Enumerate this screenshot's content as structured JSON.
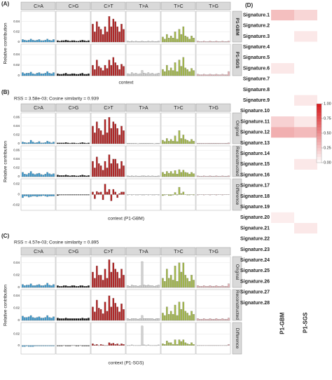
{
  "panel_a": {
    "label": "(A)",
    "ylabel": "Relative contribution",
    "xlabel": "context",
    "substitutions": [
      "C>A",
      "C>G",
      "C>T",
      "T>A",
      "T>C",
      "T>G"
    ],
    "colors": [
      "#3a9ad0",
      "#111111",
      "#b22222",
      "#d0d0d0",
      "#a3b84a",
      "#e8b4b8"
    ],
    "rows": [
      {
        "name": "P1-GBM",
        "ylim": [
          0,
          0.06
        ],
        "yticks": [
          0,
          0.02,
          0.04
        ],
        "values": [
          0.005,
          0.004,
          0.003,
          0.004,
          0.006,
          0.004,
          0.003,
          0.004,
          0.005,
          0.003,
          0.003,
          0.004,
          0.006,
          0.004,
          0.003,
          0.005,
          0.003,
          0.002,
          0.003,
          0.003,
          0.004,
          0.003,
          0.002,
          0.003,
          0.003,
          0.002,
          0.002,
          0.003,
          0.004,
          0.003,
          0.002,
          0.003,
          0.035,
          0.02,
          0.04,
          0.03,
          0.025,
          0.015,
          0.03,
          0.02,
          0.05,
          0.03,
          0.045,
          0.04,
          0.03,
          0.02,
          0.035,
          0.025,
          0.002,
          0.001,
          0.002,
          0.001,
          0.002,
          0.001,
          0.001,
          0.002,
          0.001,
          0.001,
          0.002,
          0.001,
          0.002,
          0.001,
          0.001,
          0.002,
          0.01,
          0.006,
          0.015,
          0.008,
          0.012,
          0.008,
          0.02,
          0.006,
          0.025,
          0.015,
          0.03,
          0.012,
          0.01,
          0.006,
          0.012,
          0.008,
          0.002,
          0.001,
          0.001,
          0.002,
          0.001,
          0.001,
          0.002,
          0.001,
          0.001,
          0.002,
          0.001,
          0.001,
          0.002,
          0.001,
          0.001,
          0.002
        ]
      },
      {
        "name": "P1-SGS",
        "ylim": [
          0,
          0.06
        ],
        "yticks": [
          0,
          0.02,
          0.04
        ],
        "values": [
          0.006,
          0.004,
          0.005,
          0.005,
          0.007,
          0.004,
          0.003,
          0.005,
          0.006,
          0.004,
          0.004,
          0.005,
          0.008,
          0.005,
          0.004,
          0.006,
          0.004,
          0.003,
          0.003,
          0.004,
          0.005,
          0.003,
          0.003,
          0.004,
          0.004,
          0.003,
          0.003,
          0.004,
          0.005,
          0.003,
          0.003,
          0.004,
          0.02,
          0.012,
          0.03,
          0.018,
          0.015,
          0.01,
          0.02,
          0.014,
          0.03,
          0.02,
          0.035,
          0.025,
          0.02,
          0.012,
          0.022,
          0.018,
          0.004,
          0.003,
          0.006,
          0.004,
          0.005,
          0.003,
          0.004,
          0.01,
          0.005,
          0.004,
          0.006,
          0.004,
          0.005,
          0.003,
          0.004,
          0.005,
          0.012,
          0.008,
          0.02,
          0.01,
          0.015,
          0.01,
          0.025,
          0.008,
          0.03,
          0.018,
          0.035,
          0.015,
          0.012,
          0.008,
          0.014,
          0.01,
          0.003,
          0.002,
          0.002,
          0.003,
          0.002,
          0.002,
          0.003,
          0.002,
          0.002,
          0.003,
          0.002,
          0.002,
          0.003,
          0.002,
          0.002,
          0.008
        ]
      }
    ]
  },
  "panel_b": {
    "label": "(B)",
    "note": "RSS = 3.58e-03; Cosine similarity = 0.939",
    "ylabel": "Relative contribution",
    "xlabel": "context (P1-GBM)",
    "substitutions": [
      "C>A",
      "C>G",
      "C>T",
      "T>A",
      "T>C",
      "T>G"
    ],
    "colors": [
      "#3a9ad0",
      "#111111",
      "#b22222",
      "#d0d0d0",
      "#a3b84a",
      "#e8b4b8"
    ],
    "rows": [
      {
        "name": "Original",
        "ylim": [
          0,
          0.07
        ],
        "yticks": [
          0,
          0.02,
          0.04,
          0.06
        ],
        "values": [
          0.004,
          0.003,
          0.002,
          0.003,
          0.008,
          0.004,
          0.002,
          0.003,
          0.005,
          0.002,
          0.002,
          0.003,
          0.006,
          0.004,
          0.002,
          0.004,
          0.002,
          0.002,
          0.002,
          0.002,
          0.003,
          0.002,
          0.001,
          0.002,
          0.002,
          0.001,
          0.001,
          0.002,
          0.003,
          0.002,
          0.001,
          0.002,
          0.04,
          0.025,
          0.05,
          0.035,
          0.03,
          0.02,
          0.055,
          0.025,
          0.06,
          0.035,
          0.05,
          0.045,
          0.035,
          0.02,
          0.04,
          0.03,
          0.001,
          0.001,
          0.001,
          0.001,
          0.001,
          0,
          0.001,
          0.001,
          0.001,
          0.001,
          0.001,
          0.001,
          0.001,
          0,
          0.001,
          0.001,
          0.008,
          0.005,
          0.012,
          0.006,
          0.01,
          0.006,
          0.018,
          0.005,
          0.03,
          0.012,
          0.02,
          0.01,
          0.008,
          0.005,
          0.01,
          0.006,
          0.001,
          0.001,
          0.001,
          0.001,
          0.001,
          0.001,
          0.001,
          0.001,
          0.001,
          0.001,
          0.001,
          0.001,
          0.001,
          0.001,
          0.001,
          0.002
        ]
      },
      {
        "name": "Reconstructed",
        "ylim": [
          0,
          0.07
        ],
        "yticks": [
          0,
          0.02,
          0.04,
          0.06
        ],
        "values": [
          0.01,
          0.006,
          0.005,
          0.008,
          0.012,
          0.007,
          0.005,
          0.007,
          0.008,
          0.005,
          0.004,
          0.006,
          0.01,
          0.007,
          0.005,
          0.007,
          0.004,
          0.003,
          0.003,
          0.003,
          0.004,
          0.003,
          0.002,
          0.003,
          0.003,
          0.002,
          0.002,
          0.003,
          0.004,
          0.003,
          0.002,
          0.003,
          0.035,
          0.02,
          0.045,
          0.03,
          0.025,
          0.015,
          0.035,
          0.02,
          0.05,
          0.03,
          0.04,
          0.04,
          0.03,
          0.018,
          0.035,
          0.025,
          0.002,
          0.001,
          0.002,
          0.001,
          0.002,
          0.001,
          0.001,
          0.002,
          0.002,
          0.001,
          0.002,
          0.001,
          0.002,
          0.001,
          0.001,
          0.002,
          0.01,
          0.006,
          0.012,
          0.008,
          0.012,
          0.007,
          0.014,
          0.006,
          0.016,
          0.01,
          0.015,
          0.01,
          0.009,
          0.006,
          0.01,
          0.007,
          0.002,
          0.001,
          0.001,
          0.002,
          0.001,
          0.001,
          0.002,
          0.001,
          0.001,
          0.002,
          0.001,
          0.001,
          0.002,
          0.001,
          0.001,
          0.002
        ]
      },
      {
        "name": "Difference",
        "ylim": [
          -0.03,
          0.03
        ],
        "yticks": [
          -0.02,
          0,
          0.02
        ],
        "values": [
          -0.006,
          -0.003,
          -0.003,
          -0.005,
          -0.004,
          -0.003,
          -0.003,
          -0.004,
          -0.003,
          -0.003,
          -0.002,
          -0.003,
          -0.004,
          -0.003,
          -0.003,
          -0.003,
          -0.002,
          -0.001,
          -0.001,
          -0.001,
          -0.001,
          -0.001,
          -0.001,
          -0.001,
          -0.001,
          -0.001,
          -0.001,
          -0.001,
          -0.001,
          -0.001,
          -0.001,
          -0.001,
          0.005,
          -0.008,
          0.006,
          0.004,
          0.005,
          -0.01,
          0.02,
          0.005,
          0.01,
          -0.012,
          0.01,
          0.005,
          -0.006,
          0.002,
          0.005,
          0.005,
          -0.001,
          0,
          -0.001,
          0,
          -0.001,
          -0.001,
          0,
          -0.001,
          -0.001,
          0,
          -0.001,
          0,
          -0.001,
          -0.001,
          0,
          -0.001,
          -0.002,
          -0.001,
          0,
          -0.002,
          -0.002,
          -0.001,
          0.004,
          -0.001,
          0.014,
          0.002,
          0.005,
          0,
          -0.001,
          -0.001,
          0,
          -0.001,
          -0.001,
          0,
          0,
          -0.001,
          0,
          0,
          -0.001,
          0,
          0,
          -0.001,
          0,
          0,
          -0.001,
          0,
          0,
          0
        ]
      }
    ]
  },
  "panel_c": {
    "label": "(C)",
    "note": "RSS = 4.57e-03; Cosine similarity = 0.895",
    "ylabel": "Relative contribution",
    "xlabel": "context (P1-SGS)",
    "substitutions": [
      "C>A",
      "C>G",
      "C>T",
      "T>A",
      "T>C",
      "T>G"
    ],
    "colors": [
      "#3a9ad0",
      "#111111",
      "#b22222",
      "#d0d0d0",
      "#a3b84a",
      "#e8b4b8"
    ],
    "rows": [
      {
        "name": "Original",
        "ylim": [
          0,
          0.05
        ],
        "yticks": [
          0,
          0.02,
          0.04
        ],
        "values": [
          0.005,
          0.003,
          0.004,
          0.004,
          0.006,
          0.003,
          0.003,
          0.004,
          0.005,
          0.003,
          0.003,
          0.004,
          0.007,
          0.004,
          0.003,
          0.005,
          0.003,
          0.002,
          0.002,
          0.003,
          0.003,
          0.002,
          0.002,
          0.003,
          0.003,
          0.002,
          0.002,
          0.003,
          0.003,
          0.002,
          0.002,
          0.003,
          0.025,
          0.015,
          0.035,
          0.02,
          0.02,
          0.012,
          0.03,
          0.015,
          0.045,
          0.025,
          0.04,
          0.03,
          0.025,
          0.015,
          0.03,
          0.02,
          0.003,
          0.002,
          0.004,
          0.003,
          0.003,
          0.002,
          0.003,
          0.042,
          0.004,
          0.003,
          0.004,
          0.003,
          0.003,
          0.002,
          0.003,
          0.004,
          0.015,
          0.01,
          0.03,
          0.015,
          0.02,
          0.012,
          0.035,
          0.01,
          0.04,
          0.025,
          0.04,
          0.02,
          0.015,
          0.01,
          0.02,
          0.012,
          0.003,
          0.002,
          0.002,
          0.003,
          0.002,
          0.002,
          0.003,
          0.002,
          0.002,
          0.003,
          0.002,
          0.002,
          0.003,
          0.002,
          0.002,
          0.006
        ]
      },
      {
        "name": "Reconstructed",
        "ylim": [
          0,
          0.05
        ],
        "yticks": [
          0,
          0.02,
          0.04
        ],
        "values": [
          0.007,
          0.005,
          0.005,
          0.006,
          0.008,
          0.005,
          0.004,
          0.005,
          0.006,
          0.004,
          0.004,
          0.005,
          0.008,
          0.005,
          0.004,
          0.006,
          0.004,
          0.003,
          0.003,
          0.003,
          0.004,
          0.003,
          0.003,
          0.003,
          0.003,
          0.003,
          0.003,
          0.003,
          0.004,
          0.003,
          0.003,
          0.004,
          0.022,
          0.014,
          0.033,
          0.02,
          0.018,
          0.011,
          0.03,
          0.015,
          0.04,
          0.022,
          0.036,
          0.028,
          0.022,
          0.014,
          0.027,
          0.018,
          0.003,
          0.002,
          0.003,
          0.003,
          0.003,
          0.002,
          0.003,
          0.008,
          0.003,
          0.003,
          0.003,
          0.003,
          0.003,
          0.002,
          0.003,
          0.003,
          0.012,
          0.008,
          0.022,
          0.01,
          0.015,
          0.01,
          0.025,
          0.008,
          0.03,
          0.018,
          0.03,
          0.015,
          0.012,
          0.008,
          0.015,
          0.01,
          0.003,
          0.002,
          0.002,
          0.003,
          0.002,
          0.002,
          0.003,
          0.002,
          0.002,
          0.003,
          0.002,
          0.002,
          0.003,
          0.002,
          0.002,
          0.004
        ]
      },
      {
        "name": "Difference",
        "ylim": [
          -0.015,
          0.04
        ],
        "yticks": [
          0,
          0.02
        ],
        "values": [
          -0.002,
          -0.002,
          -0.001,
          -0.002,
          -0.002,
          -0.002,
          -0.001,
          -0.001,
          -0.001,
          -0.001,
          -0.001,
          -0.001,
          -0.001,
          -0.001,
          -0.001,
          -0.001,
          -0.001,
          -0.001,
          -0.001,
          0,
          -0.001,
          -0.001,
          -0.001,
          0,
          0,
          -0.001,
          -0.001,
          0,
          -0.001,
          -0.001,
          -0.001,
          -0.001,
          0.003,
          0.001,
          0.002,
          0,
          0.002,
          0.001,
          0,
          0,
          0.005,
          0.003,
          0.004,
          0.002,
          0.003,
          0.001,
          0.003,
          0.002,
          0,
          0,
          0.001,
          0,
          0,
          0,
          0,
          0.034,
          0.001,
          0,
          0.001,
          0,
          0,
          0,
          0,
          0.001,
          0.003,
          0.002,
          0.008,
          0.005,
          0.005,
          0.002,
          0.01,
          0.002,
          0.01,
          0.007,
          0.01,
          0.005,
          0.003,
          0.002,
          0.005,
          0.002,
          0,
          0,
          0,
          0,
          0,
          0,
          0,
          0,
          0,
          0,
          0,
          0,
          0,
          0,
          0,
          0.002
        ]
      }
    ]
  },
  "panel_d": {
    "label": "(D)",
    "samples": [
      "P1-GBM",
      "P1-SGS"
    ],
    "signatures": [
      "Signature.1",
      "Signature.2",
      "Signature.3",
      "Signature.4",
      "Signature.5",
      "Signature.6",
      "Signature.7",
      "Signature.8",
      "Signature.9",
      "Signature.10",
      "Signature.11",
      "Signature.12",
      "Signature.13",
      "Signature.14",
      "Signature.15",
      "Signature.16",
      "Signature.17",
      "Signature.18",
      "Signature.19",
      "Signature.20",
      "Signature.21",
      "Signature.22",
      "Signature.23",
      "Signature.24",
      "Signature.25",
      "Signature.26",
      "Signature.27",
      "Signature.28"
    ],
    "values": [
      [
        0.28,
        0.18
      ],
      [
        0,
        0
      ],
      [
        0,
        0.1
      ],
      [
        0,
        0
      ],
      [
        0,
        0
      ],
      [
        0.1,
        0
      ],
      [
        0,
        0
      ],
      [
        0,
        0
      ],
      [
        0,
        0.1
      ],
      [
        0,
        0
      ],
      [
        0.2,
        0.1
      ],
      [
        0.35,
        0.3
      ],
      [
        0,
        0
      ],
      [
        0,
        0
      ],
      [
        0,
        0.1
      ],
      [
        0,
        0
      ],
      [
        0,
        0
      ],
      [
        0,
        0
      ],
      [
        0,
        0
      ],
      [
        0.08,
        0
      ],
      [
        0,
        0.1
      ],
      [
        0,
        0
      ],
      [
        0,
        0
      ],
      [
        0,
        0
      ],
      [
        0,
        0
      ],
      [
        0,
        0
      ],
      [
        0,
        0
      ],
      [
        0,
        0
      ]
    ],
    "clim": [
      0,
      1
    ],
    "colors": [
      "#ffffff",
      "#d7191c"
    ],
    "colorbar_ticks": [
      {
        "value": 1,
        "label": "1.00"
      },
      {
        "value": 0.75,
        "label": "0.75"
      },
      {
        "value": 0.5,
        "label": "0.50"
      },
      {
        "value": 0.25,
        "label": "0.25"
      },
      {
        "value": 0,
        "label": "0.00"
      }
    ]
  }
}
